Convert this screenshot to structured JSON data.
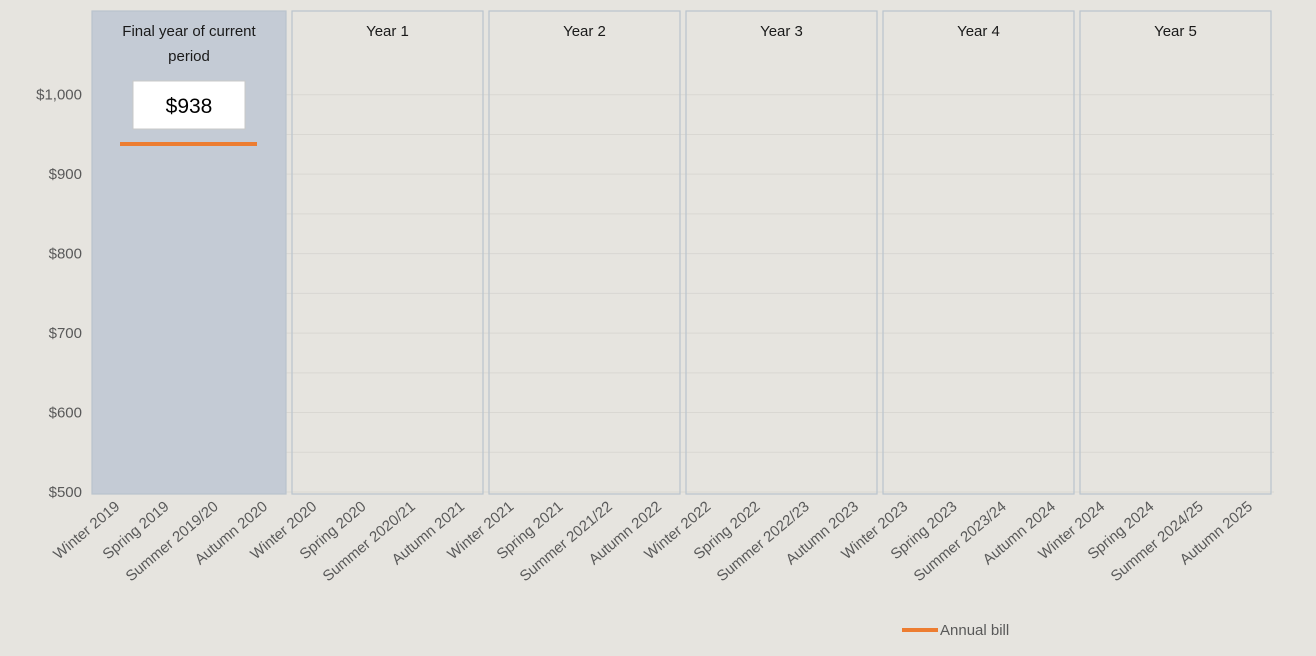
{
  "chart_data": {
    "type": "line",
    "title": "",
    "xlabel": "",
    "ylabel": "",
    "ylim": [
      500,
      1050
    ],
    "yticks": [
      500,
      600,
      700,
      800,
      900,
      1000
    ],
    "ytick_labels": [
      "$500",
      "$600",
      "$700",
      "$800",
      "$900",
      "$1,000"
    ],
    "grid": true,
    "categories": [
      "Winter 2019",
      "Spring 2019",
      "Summer 2019/20",
      "Autumn 2020",
      "Winter 2020",
      "Spring 2020",
      "Summer 2020/21",
      "Autumn 2021",
      "Winter 2021",
      "Spring 2021",
      "Summer 2021/22",
      "Autumn 2022",
      "Winter 2022",
      "Spring 2022",
      "Summer 2022/23",
      "Autumn 2023",
      "Winter 2023",
      "Spring 2023",
      "Summer 2023/24",
      "Autumn 2024",
      "Winter 2024",
      "Spring 2024",
      "Summer 2024/25",
      "Autumn 2025"
    ],
    "panels": [
      {
        "label": "Final year of current period",
        "label_lines": [
          "Final year of current",
          "period"
        ],
        "start": 0,
        "end": 3,
        "highlight": true,
        "value_label": "$938"
      },
      {
        "label": "Year 1",
        "label_lines": [
          "Year 1"
        ],
        "start": 4,
        "end": 7,
        "highlight": false,
        "value_label": ""
      },
      {
        "label": "Year 2",
        "label_lines": [
          "Year 2"
        ],
        "start": 8,
        "end": 11,
        "highlight": false,
        "value_label": ""
      },
      {
        "label": "Year 3",
        "label_lines": [
          "Year 3"
        ],
        "start": 12,
        "end": 15,
        "highlight": false,
        "value_label": ""
      },
      {
        "label": "Year 4",
        "label_lines": [
          "Year 4"
        ],
        "start": 16,
        "end": 19,
        "highlight": false,
        "value_label": ""
      },
      {
        "label": "Year 5",
        "label_lines": [
          "Year 5"
        ],
        "start": 20,
        "end": 23,
        "highlight": false,
        "value_label": ""
      }
    ],
    "series": [
      {
        "name": "Annual bill",
        "color": "#ed7d31",
        "values": [
          938,
          938,
          938,
          938,
          null,
          null,
          null,
          null,
          null,
          null,
          null,
          null,
          null,
          null,
          null,
          null,
          null,
          null,
          null,
          null,
          null,
          null,
          null,
          null
        ]
      }
    ],
    "legend": {
      "position": "bottom-center",
      "entries": [
        "Annual bill"
      ]
    },
    "colors": {
      "highlight_panel": "#c4cbd5",
      "panel_border": "#b9c4ce",
      "grid": "#d9d7d2",
      "axis_text": "#595959"
    }
  }
}
